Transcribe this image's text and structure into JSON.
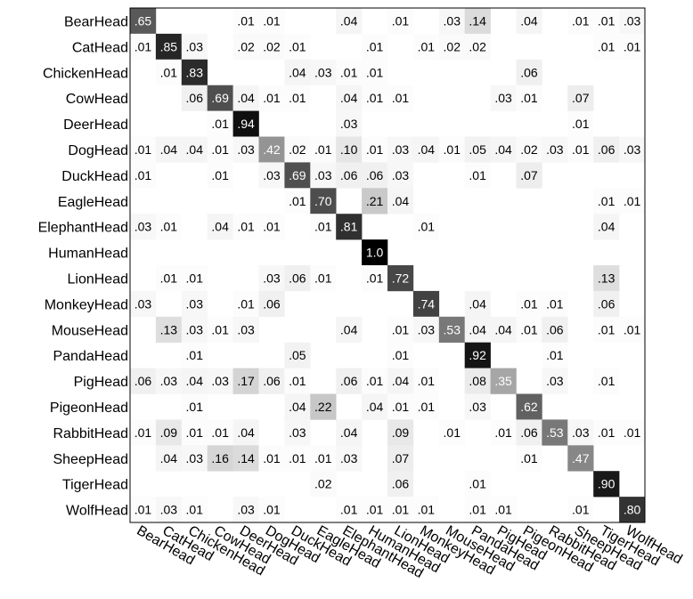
{
  "chart_data": {
    "type": "heatmap",
    "title": "",
    "xlabel": "",
    "ylabel": "",
    "categories": [
      "BearHead",
      "CatHead",
      "ChickenHead",
      "CowHead",
      "DeerHead",
      "DogHead",
      "DuckHead",
      "EagleHead",
      "ElephantHead",
      "HumanHead",
      "LionHead",
      "MonkeyHead",
      "MouseHead",
      "PandaHead",
      "PigHead",
      "PigeonHead",
      "RabbitHead",
      "SheepHead",
      "TigerHead",
      "WolfHead"
    ],
    "values": [
      [
        0.65,
        null,
        null,
        null,
        0.01,
        0.01,
        null,
        null,
        0.04,
        null,
        0.01,
        null,
        0.03,
        0.14,
        null,
        0.04,
        null,
        0.01,
        0.01,
        0.03
      ],
      [
        0.01,
        0.85,
        0.03,
        null,
        0.02,
        0.02,
        0.01,
        null,
        null,
        0.01,
        null,
        0.01,
        0.02,
        0.02,
        null,
        null,
        null,
        null,
        0.01,
        0.01
      ],
      [
        null,
        0.01,
        0.83,
        null,
        null,
        null,
        0.04,
        0.03,
        0.01,
        0.01,
        null,
        null,
        null,
        null,
        null,
        0.06,
        null,
        null,
        null,
        null
      ],
      [
        null,
        null,
        0.06,
        0.69,
        0.04,
        0.01,
        0.01,
        null,
        0.04,
        0.01,
        0.01,
        null,
        null,
        null,
        0.03,
        0.01,
        null,
        0.07,
        null,
        null
      ],
      [
        null,
        null,
        null,
        0.01,
        0.94,
        null,
        null,
        null,
        0.03,
        null,
        null,
        null,
        null,
        null,
        null,
        null,
        null,
        0.01,
        null,
        null
      ],
      [
        0.01,
        0.04,
        0.04,
        0.01,
        0.03,
        0.42,
        0.02,
        0.01,
        0.1,
        0.01,
        0.03,
        0.04,
        0.01,
        0.05,
        0.04,
        0.02,
        0.03,
        0.01,
        0.06,
        0.03
      ],
      [
        0.01,
        null,
        null,
        0.01,
        null,
        0.03,
        0.69,
        0.03,
        0.06,
        0.06,
        0.03,
        null,
        null,
        0.01,
        null,
        0.07,
        null,
        null,
        null,
        null
      ],
      [
        null,
        null,
        null,
        null,
        null,
        null,
        0.01,
        0.7,
        null,
        0.21,
        0.04,
        null,
        null,
        null,
        null,
        null,
        null,
        null,
        0.01,
        0.01
      ],
      [
        0.03,
        0.01,
        null,
        0.04,
        0.01,
        0.01,
        null,
        0.01,
        0.81,
        null,
        null,
        0.01,
        null,
        null,
        null,
        null,
        null,
        null,
        0.04,
        null
      ],
      [
        null,
        null,
        null,
        null,
        null,
        null,
        null,
        null,
        null,
        1.0,
        null,
        null,
        null,
        null,
        null,
        null,
        null,
        null,
        null,
        null
      ],
      [
        null,
        0.01,
        0.01,
        null,
        null,
        0.03,
        0.06,
        0.01,
        null,
        0.01,
        0.72,
        null,
        null,
        null,
        null,
        null,
        null,
        null,
        0.13,
        null
      ],
      [
        0.03,
        null,
        0.03,
        null,
        0.01,
        0.06,
        null,
        null,
        null,
        null,
        null,
        0.74,
        null,
        0.04,
        null,
        0.01,
        0.01,
        null,
        0.06,
        null
      ],
      [
        null,
        0.13,
        0.03,
        0.01,
        0.03,
        null,
        null,
        null,
        0.04,
        null,
        0.01,
        0.03,
        0.53,
        0.04,
        0.04,
        0.01,
        0.06,
        null,
        0.01,
        0.01
      ],
      [
        null,
        null,
        0.01,
        null,
        null,
        null,
        0.05,
        null,
        null,
        null,
        0.01,
        null,
        null,
        0.92,
        null,
        null,
        0.01,
        null,
        null,
        null
      ],
      [
        0.06,
        0.03,
        0.04,
        0.03,
        0.17,
        0.06,
        0.01,
        null,
        0.06,
        0.01,
        0.04,
        0.01,
        null,
        0.08,
        0.35,
        null,
        0.03,
        null,
        0.01,
        null
      ],
      [
        null,
        null,
        0.01,
        null,
        null,
        null,
        0.04,
        0.22,
        null,
        0.04,
        0.01,
        0.01,
        null,
        0.03,
        null,
        0.62,
        null,
        null,
        null,
        null
      ],
      [
        0.01,
        0.09,
        0.01,
        0.01,
        0.04,
        null,
        0.03,
        null,
        0.04,
        null,
        0.09,
        null,
        0.01,
        null,
        0.01,
        0.06,
        0.53,
        0.03,
        0.01,
        0.01
      ],
      [
        null,
        0.04,
        0.03,
        0.16,
        0.14,
        0.01,
        0.01,
        0.01,
        0.03,
        null,
        0.07,
        null,
        null,
        null,
        null,
        0.01,
        null,
        0.47,
        null,
        null
      ],
      [
        null,
        null,
        null,
        null,
        null,
        null,
        null,
        0.02,
        null,
        null,
        0.06,
        null,
        null,
        0.01,
        null,
        null,
        null,
        null,
        0.9,
        null
      ],
      [
        0.01,
        0.03,
        0.01,
        null,
        0.03,
        0.01,
        null,
        null,
        0.01,
        0.01,
        0.01,
        0.01,
        null,
        0.01,
        0.01,
        null,
        null,
        0.01,
        null,
        0.8
      ]
    ],
    "labels": [
      [
        ".65",
        "",
        "",
        "",
        ".01",
        ".01",
        "",
        "",
        ".04",
        "",
        ".01",
        "",
        ".03",
        ".14",
        "",
        ".04",
        "",
        ".01",
        ".01",
        ".03"
      ],
      [
        ".01",
        ".85",
        ".03",
        "",
        ".02",
        ".02",
        ".01",
        "",
        "",
        ".01",
        "",
        ".01",
        ".02",
        ".02",
        "",
        "",
        "",
        "",
        ".01",
        ".01"
      ],
      [
        "",
        ".01",
        ".83",
        "",
        "",
        "",
        ".04",
        ".03",
        ".01",
        ".01",
        "",
        "",
        "",
        "",
        "",
        ".06",
        "",
        "",
        "",
        ""
      ],
      [
        "",
        "",
        ".06",
        ".69",
        ".04",
        ".01",
        ".01",
        "",
        ".04",
        ".01",
        ".01",
        "",
        "",
        "",
        ".03",
        ".01",
        "",
        ".07",
        "",
        ""
      ],
      [
        "",
        "",
        "",
        ".01",
        ".94",
        "",
        "",
        "",
        ".03",
        "",
        "",
        "",
        "",
        "",
        "",
        "",
        "",
        ".01",
        "",
        ""
      ],
      [
        ".01",
        ".04",
        ".04",
        ".01",
        ".03",
        ".42",
        ".02",
        ".01",
        ".10",
        ".01",
        ".03",
        ".04",
        ".01",
        ".05",
        ".04",
        ".02",
        ".03",
        ".01",
        ".06",
        ".03"
      ],
      [
        ".01",
        "",
        "",
        ".01",
        "",
        ".03",
        ".69",
        ".03",
        ".06",
        ".06",
        ".03",
        "",
        "",
        ".01",
        "",
        ".07",
        "",
        "",
        "",
        ""
      ],
      [
        "",
        "",
        "",
        "",
        "",
        "",
        ".01",
        ".70",
        "",
        ".21",
        ".04",
        "",
        "",
        "",
        "",
        "",
        "",
        "",
        ".01",
        ".01"
      ],
      [
        ".03",
        ".01",
        "",
        ".04",
        ".01",
        ".01",
        "",
        ".01",
        ".81",
        "",
        "",
        ".01",
        "",
        "",
        "",
        "",
        "",
        "",
        ".04",
        ""
      ],
      [
        "",
        "",
        "",
        "",
        "",
        "",
        "",
        "",
        "",
        "1.0",
        "",
        "",
        "",
        "",
        "",
        "",
        "",
        "",
        "",
        ""
      ],
      [
        "",
        ".01",
        ".01",
        "",
        "",
        ".03",
        ".06",
        ".01",
        "",
        ".01",
        ".72",
        "",
        "",
        "",
        "",
        "",
        "",
        "",
        ".13",
        ""
      ],
      [
        ".03",
        "",
        ".03",
        "",
        ".01",
        ".06",
        "",
        "",
        "",
        "",
        "",
        ".74",
        "",
        ".04",
        "",
        ".01",
        ".01",
        "",
        ".06",
        ""
      ],
      [
        "",
        ".13",
        ".03",
        ".01",
        ".03",
        "",
        "",
        "",
        ".04",
        "",
        ".01",
        ".03",
        ".53",
        ".04",
        ".04",
        ".01",
        ".06",
        "",
        ".01",
        ".01"
      ],
      [
        "",
        "",
        ".01",
        "",
        "",
        "",
        ".05",
        "",
        "",
        "",
        ".01",
        "",
        "",
        ".92",
        "",
        "",
        ".01",
        "",
        "",
        ""
      ],
      [
        ".06",
        ".03",
        ".04",
        ".03",
        ".17",
        ".06",
        ".01",
        "",
        ".06",
        ".01",
        ".04",
        ".01",
        "",
        ".08",
        ".35",
        "",
        ".03",
        "",
        ".01",
        ""
      ],
      [
        "",
        "",
        ".01",
        "",
        "",
        "",
        ".04",
        ".22",
        "",
        ".04",
        ".01",
        ".01",
        "",
        ".03",
        "",
        ".62",
        "",
        "",
        "",
        ""
      ],
      [
        ".01",
        ".09",
        ".01",
        ".01",
        ".04",
        "",
        ".03",
        "",
        ".04",
        "",
        ".09",
        "",
        ".01",
        "",
        ".01",
        ".06",
        ".53",
        ".03",
        ".01",
        ".01"
      ],
      [
        "",
        ".04",
        ".03",
        ".16",
        ".14",
        ".01",
        ".01",
        ".01",
        ".03",
        "",
        ".07",
        "",
        "",
        "",
        "",
        ".01",
        "",
        ".47",
        "",
        ""
      ],
      [
        "",
        "",
        "",
        "",
        "",
        "",
        "",
        ".02",
        "",
        "",
        ".06",
        "",
        "",
        ".01",
        "",
        "",
        "",
        "",
        ".90",
        ""
      ],
      [
        ".01",
        ".03",
        ".01",
        "",
        ".03",
        ".01",
        "",
        "",
        ".01",
        ".01",
        ".01",
        ".01",
        "",
        ".01",
        ".01",
        "",
        "",
        ".01",
        "",
        ".80"
      ]
    ],
    "colormap": "grayscale-reversed",
    "vmin": 0,
    "vmax": 1,
    "grid": false,
    "legend": "none"
  }
}
